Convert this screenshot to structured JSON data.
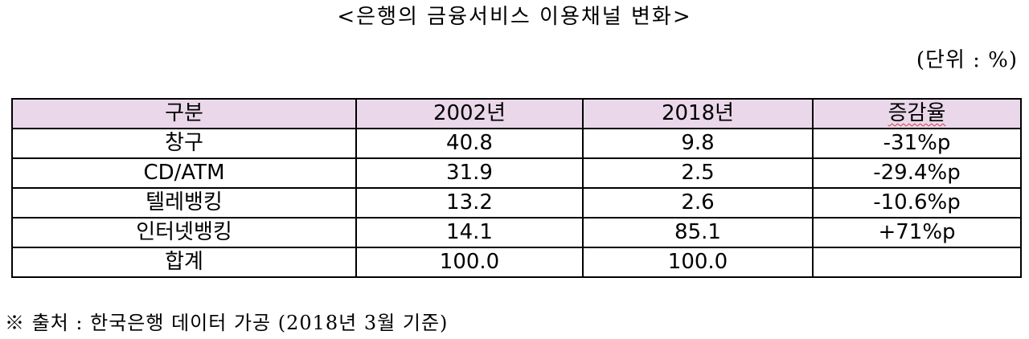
{
  "document": {
    "title": "<은행의 금융서비스 이용채널 변화>",
    "unit": "(단위 : %)",
    "source": "※ 출처 : 한국은행 데이터 가공 (2018년 3월 기준)"
  },
  "table": {
    "headers": [
      "구분",
      "2002년",
      "2018년",
      "증감율"
    ],
    "rows": [
      [
        "창구",
        "40.8",
        "9.8",
        "-31%p"
      ],
      [
        "CD/ATM",
        "31.9",
        "2.5",
        "-29.4%p"
      ],
      [
        "텔레뱅킹",
        "13.2",
        "2.6",
        "-10.6%p"
      ],
      [
        "인터넷뱅킹",
        "14.1",
        "85.1",
        "+71%p"
      ],
      [
        "합계",
        "100.0",
        "100.0",
        ""
      ]
    ]
  },
  "colors": {
    "header_background": "#ead8ea",
    "border": "#000000",
    "spellcheck_underline": "#d23c3c"
  }
}
